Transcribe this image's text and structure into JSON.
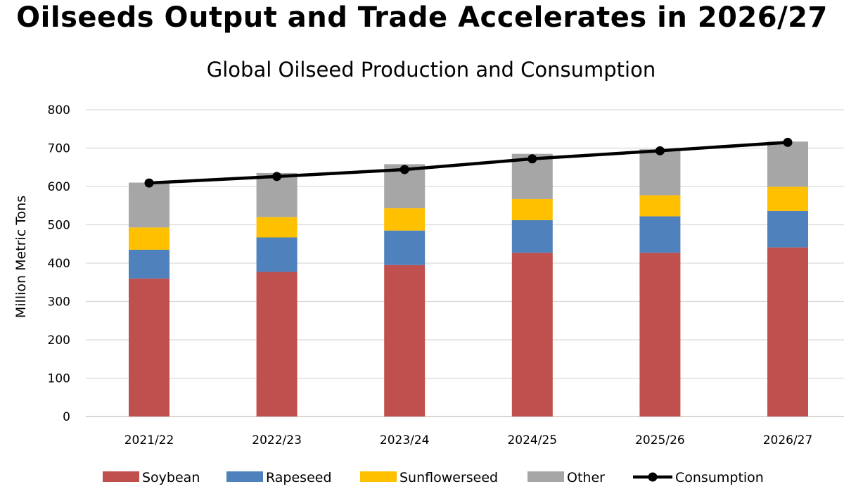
{
  "header": {
    "title": "Oilseeds Output and Trade Accelerates in 2026/27"
  },
  "chart_data": {
    "type": "bar",
    "stacked": true,
    "title": "Global Oilseed Production and Consumption",
    "xlabel": "",
    "ylabel": "Million Metric Tons",
    "ylim": [
      0,
      800
    ],
    "yticks": [
      0,
      100,
      200,
      300,
      400,
      500,
      600,
      700,
      800
    ],
    "grid": true,
    "legend_position": "bottom",
    "categories": [
      "2021/22",
      "2022/23",
      "2023/24",
      "2024/25",
      "2025/26",
      "2026/27"
    ],
    "series": [
      {
        "name": "Soybean",
        "kind": "bar",
        "color": "#C0504D",
        "values": [
          360,
          377,
          395,
          427,
          427,
          441
        ]
      },
      {
        "name": "Rapeseed",
        "kind": "bar",
        "color": "#4F81BD",
        "values": [
          75,
          90,
          90,
          85,
          95,
          95
        ]
      },
      {
        "name": "Sunflowerseed",
        "kind": "bar",
        "color": "#FFC000",
        "values": [
          58,
          53,
          58,
          55,
          55,
          63
        ]
      },
      {
        "name": "Other",
        "kind": "bar",
        "color": "#A6A6A6",
        "values": [
          117,
          115,
          115,
          118,
          120,
          118
        ]
      },
      {
        "name": "Consumption",
        "kind": "line",
        "color": "#000000",
        "values": [
          609,
          626,
          644,
          672,
          693,
          715
        ]
      }
    ]
  }
}
